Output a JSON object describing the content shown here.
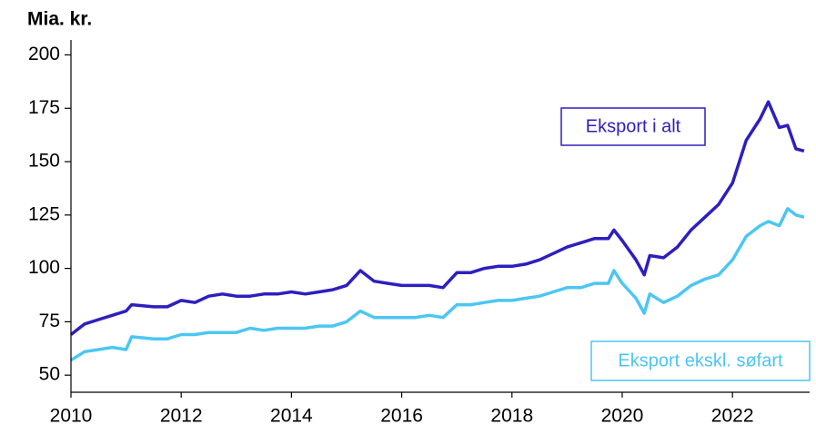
{
  "chart_data": {
    "type": "line",
    "y_label": "Mia. kr.",
    "xlim": [
      2010,
      2023.4
    ],
    "xticks": [
      2010,
      2012,
      2014,
      2016,
      2018,
      2020,
      2022
    ],
    "ylim": [
      42,
      207
    ],
    "yticks": [
      50,
      75,
      100,
      125,
      150,
      175,
      200
    ],
    "x": [
      2010.0,
      2010.25,
      2010.5,
      2010.75,
      2011.0,
      2011.1,
      2011.5,
      2011.75,
      2012.0,
      2012.25,
      2012.5,
      2012.75,
      2013.0,
      2013.25,
      2013.5,
      2013.75,
      2014.0,
      2014.25,
      2014.5,
      2014.75,
      2015.0,
      2015.25,
      2015.5,
      2015.75,
      2016.0,
      2016.25,
      2016.5,
      2016.75,
      2017.0,
      2017.25,
      2017.5,
      2017.75,
      2018.0,
      2018.25,
      2018.5,
      2018.75,
      2019.0,
      2019.25,
      2019.5,
      2019.75,
      2019.85,
      2020.0,
      2020.25,
      2020.4,
      2020.5,
      2020.75,
      2021.0,
      2021.25,
      2021.5,
      2021.75,
      2022.0,
      2022.25,
      2022.5,
      2022.65,
      2022.85,
      2023.0,
      2023.15,
      2023.3
    ],
    "series": [
      {
        "name": "Eksport i alt",
        "color": "#2d1fbe",
        "values": [
          69,
          74,
          76,
          78,
          80,
          83,
          82,
          82,
          85,
          84,
          87,
          88,
          87,
          87,
          88,
          88,
          89,
          88,
          89,
          90,
          92,
          99,
          94,
          93,
          92,
          92,
          92,
          91,
          98,
          98,
          100,
          101,
          101,
          102,
          104,
          107,
          110,
          112,
          114,
          114,
          118,
          113,
          104,
          97,
          106,
          105,
          110,
          118,
          124,
          130,
          140,
          160,
          170,
          178,
          166,
          167,
          156,
          155
        ]
      },
      {
        "name": "Eksport ekskl. søfart",
        "color": "#4cc6f2",
        "values": [
          57,
          61,
          62,
          63,
          62,
          68,
          67,
          67,
          69,
          69,
          70,
          70,
          70,
          72,
          71,
          72,
          72,
          72,
          73,
          73,
          75,
          80,
          77,
          77,
          77,
          77,
          78,
          77,
          83,
          83,
          84,
          85,
          85,
          86,
          87,
          89,
          91,
          91,
          93,
          93,
          99,
          93,
          86,
          79,
          88,
          84,
          87,
          92,
          95,
          97,
          104,
          115,
          120,
          122,
          120,
          128,
          125,
          124
        ]
      }
    ]
  }
}
